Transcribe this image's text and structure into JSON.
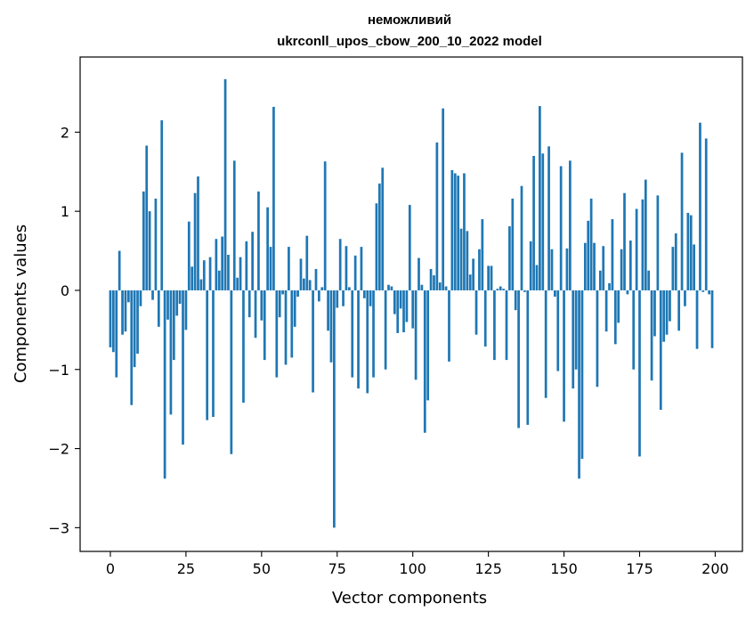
{
  "chart_data": {
    "type": "bar",
    "title": "неможливий",
    "subtitle": "ukrconll_upos_cbow_200_10_2022 model",
    "xlabel": "Vector components",
    "ylabel": "Components values",
    "xlim": [
      -10,
      209
    ],
    "ylim": [
      -3.3,
      2.95
    ],
    "xticks": [
      0,
      25,
      50,
      75,
      100,
      125,
      150,
      175,
      200
    ],
    "yticks": [
      -3,
      -2,
      -1,
      0,
      1,
      2
    ],
    "xtick_labels": [
      "0",
      "25",
      "50",
      "75",
      "100",
      "125",
      "150",
      "175",
      "200"
    ],
    "ytick_labels": [
      "−3",
      "−2",
      "−1",
      "0",
      "1",
      "2"
    ],
    "bar_color": "#1f77b4",
    "grid": false,
    "legend": "none",
    "x": [
      0,
      1,
      2,
      3,
      4,
      5,
      6,
      7,
      8,
      9,
      10,
      11,
      12,
      13,
      14,
      15,
      16,
      17,
      18,
      19,
      20,
      21,
      22,
      23,
      24,
      25,
      26,
      27,
      28,
      29,
      30,
      31,
      32,
      33,
      34,
      35,
      36,
      37,
      38,
      39,
      40,
      41,
      42,
      43,
      44,
      45,
      46,
      47,
      48,
      49,
      50,
      51,
      52,
      53,
      54,
      55,
      56,
      57,
      58,
      59,
      60,
      61,
      62,
      63,
      64,
      65,
      66,
      67,
      68,
      69,
      70,
      71,
      72,
      73,
      74,
      75,
      76,
      77,
      78,
      79,
      80,
      81,
      82,
      83,
      84,
      85,
      86,
      87,
      88,
      89,
      90,
      91,
      92,
      93,
      94,
      95,
      96,
      97,
      98,
      99,
      100,
      101,
      102,
      103,
      104,
      105,
      106,
      107,
      108,
      109,
      110,
      111,
      112,
      113,
      114,
      115,
      116,
      117,
      118,
      119,
      120,
      121,
      122,
      123,
      124,
      125,
      126,
      127,
      128,
      129,
      130,
      131,
      132,
      133,
      134,
      135,
      136,
      137,
      138,
      139,
      140,
      141,
      142,
      143,
      144,
      145,
      146,
      147,
      148,
      149,
      150,
      151,
      152,
      153,
      154,
      155,
      156,
      157,
      158,
      159,
      160,
      161,
      162,
      163,
      164,
      165,
      166,
      167,
      168,
      169,
      170,
      171,
      172,
      173,
      174,
      175,
      176,
      177,
      178,
      179,
      180,
      181,
      182,
      183,
      184,
      185,
      186,
      187,
      188,
      189,
      190,
      191,
      192,
      193,
      194,
      195,
      196,
      197,
      198,
      199
    ],
    "values": [
      -0.72,
      -0.78,
      -1.1,
      0.5,
      -0.56,
      -0.52,
      -0.15,
      -1.45,
      -0.97,
      -0.8,
      -0.2,
      1.25,
      1.83,
      1.0,
      -0.12,
      1.16,
      -0.46,
      2.15,
      -2.38,
      -0.37,
      -1.57,
      -0.88,
      -0.32,
      -0.17,
      -1.95,
      -0.5,
      0.87,
      0.3,
      1.23,
      1.44,
      0.14,
      0.38,
      -1.64,
      0.42,
      -1.6,
      0.65,
      0.25,
      0.68,
      2.67,
      0.45,
      -2.07,
      1.64,
      0.16,
      0.42,
      -1.42,
      0.62,
      -0.34,
      0.74,
      -0.6,
      1.25,
      -0.38,
      -0.88,
      1.05,
      0.55,
      2.32,
      -1.1,
      -0.34,
      -0.05,
      -0.94,
      0.55,
      -0.85,
      -0.46,
      -0.08,
      0.4,
      0.15,
      0.69,
      0.13,
      -1.29,
      0.27,
      -0.14,
      0.04,
      1.63,
      -0.51,
      -0.91,
      -3.0,
      -0.22,
      0.65,
      -0.2,
      0.56,
      0.04,
      -1.1,
      0.44,
      -1.24,
      0.55,
      -0.1,
      -1.3,
      -0.2,
      -1.1,
      1.1,
      1.35,
      1.55,
      -1.0,
      0.07,
      0.05,
      -0.3,
      -0.54,
      -0.23,
      -0.53,
      -0.4,
      1.08,
      -0.48,
      -1.13,
      0.41,
      0.07,
      -1.8,
      -1.39,
      0.27,
      0.19,
      1.87,
      0.1,
      2.3,
      0.05,
      -0.9,
      1.52,
      1.48,
      1.45,
      0.78,
      1.48,
      0.75,
      0.2,
      0.4,
      -0.56,
      0.52,
      0.9,
      -0.71,
      0.31,
      0.31,
      -0.88,
      0.02,
      0.05,
      0.02,
      -0.88,
      0.81,
      1.16,
      -0.25,
      -1.74,
      1.32,
      -0.02,
      -1.7,
      0.62,
      1.7,
      0.32,
      2.33,
      1.73,
      -1.36,
      1.82,
      0.52,
      -0.08,
      -1.02,
      1.57,
      -1.66,
      0.53,
      1.64,
      -1.24,
      -1.0,
      -2.38,
      -2.13,
      0.6,
      0.88,
      1.16,
      0.6,
      -1.22,
      0.25,
      0.56,
      -0.52,
      0.09,
      0.9,
      -0.68,
      -0.41,
      0.52,
      1.23,
      -0.05,
      0.63,
      -1.0,
      1.03,
      -2.1,
      1.15,
      1.4,
      0.25,
      -1.14,
      -0.58,
      1.2,
      -1.51,
      -0.65,
      -0.56,
      -0.39,
      0.55,
      0.72,
      -0.51,
      1.74,
      -0.2,
      0.98,
      0.95,
      0.58,
      -0.74,
      2.12,
      -0.02,
      1.92,
      -0.05,
      -0.73
    ]
  }
}
